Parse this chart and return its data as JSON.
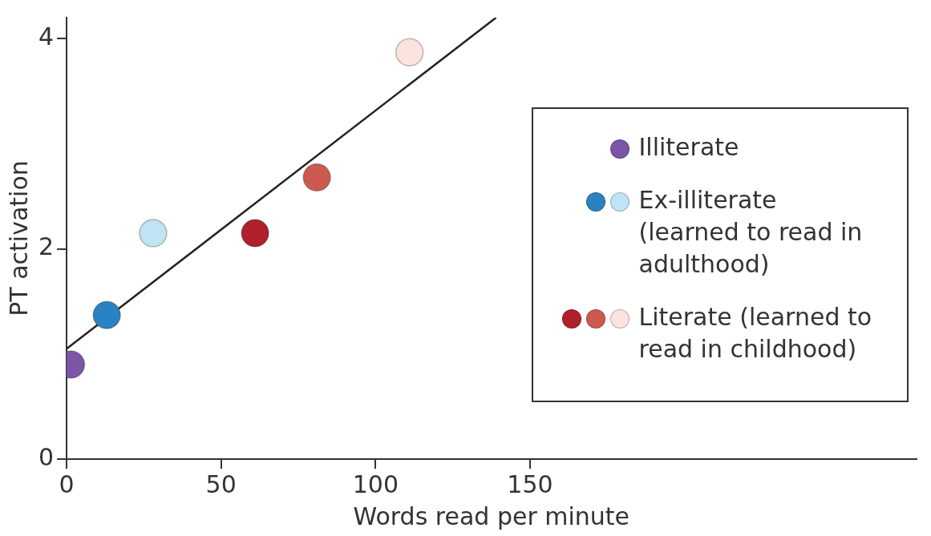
{
  "chart_data": {
    "type": "scatter",
    "xlabel": "Words read per minute",
    "ylabel": "PT activation",
    "xlim": [
      0,
      275
    ],
    "ylim": [
      0,
      4.2
    ],
    "xticks": [
      0,
      50,
      100,
      150
    ],
    "yticks": [
      0,
      2,
      4
    ],
    "legend": "right",
    "marker": "circle",
    "series": [
      {
        "name": "Illiterate",
        "x": [
          1.4
        ],
        "values": [
          0.9
        ],
        "colors": [
          "#7b55a8"
        ]
      },
      {
        "name": "Ex-illiterate (learned to read in adulthood)",
        "x": [
          13,
          28
        ],
        "values": [
          1.37,
          2.15
        ],
        "colors": [
          "#2a82c2",
          "#bfe4f4"
        ]
      },
      {
        "name": "Literate (learned to read in childhood)",
        "x": [
          61,
          81,
          111
        ],
        "values": [
          2.15,
          2.68,
          3.87
        ],
        "colors": [
          "#b0202a",
          "#cc5a50",
          "#fbe3de"
        ]
      },
      {
        "type": "line",
        "marker": "none",
        "color": "#222222",
        "x": [
          0,
          139
        ],
        "values": [
          1.05,
          4.2
        ]
      }
    ]
  }
}
